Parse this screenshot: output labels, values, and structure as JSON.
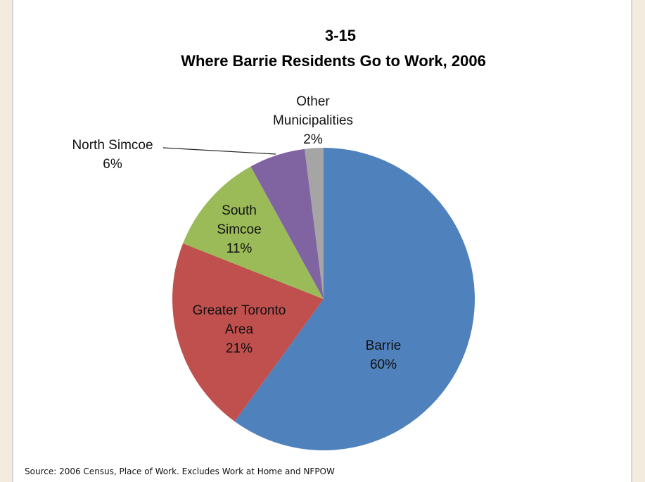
{
  "chart_data": {
    "type": "pie",
    "title": "3-15",
    "subtitle": "Where Barrie Residents Go to Work, 2006",
    "categories": [
      "Barrie",
      "Greater Toronto Area",
      "South Simcoe",
      "North Simcoe",
      "Other Municipalities"
    ],
    "values": [
      60,
      21,
      11,
      6,
      2
    ],
    "value_labels": [
      "60%",
      "21%",
      "11%",
      "6%",
      "2%"
    ],
    "colors": [
      "#4f81bd",
      "#c0504d",
      "#9bbb59",
      "#8064a2",
      "#a5a5a5"
    ],
    "source": "Source: 2006 Census, Place of Work. Excludes Work at Home and NFPOW"
  }
}
